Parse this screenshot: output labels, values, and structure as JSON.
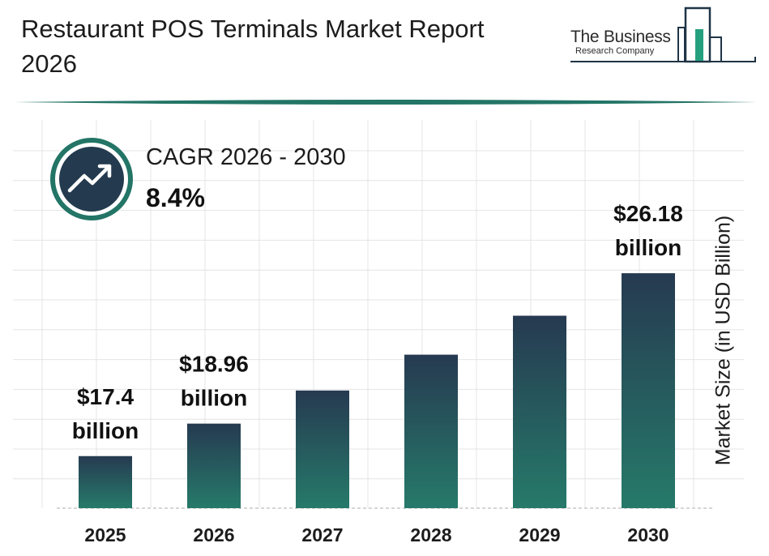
{
  "header": {
    "title": "Restaurant POS Terminals Market Report 2026"
  },
  "logo": {
    "name": "The Business",
    "subtitle": "Research Company"
  },
  "cagr": {
    "label": "CAGR 2026 - 2030",
    "value": "8.4%",
    "icon": "trend-up-icon"
  },
  "colors": {
    "bar_top": "#263a51",
    "bar_bottom": "#267a6a",
    "accent": "#237566",
    "grid": "#e4e4e4"
  },
  "chart_data": {
    "type": "bar",
    "categories": [
      "2025",
      "2026",
      "2027",
      "2028",
      "2029",
      "2030"
    ],
    "values": [
      17.4,
      18.96,
      20.55,
      22.27,
      24.14,
      26.18
    ],
    "data_labels": [
      "$17.4 billion",
      "$18.96 billion",
      "",
      "",
      "",
      "$26.18 billion"
    ],
    "ylabel": "Market Size (in USD Billion)",
    "grid": true
  }
}
